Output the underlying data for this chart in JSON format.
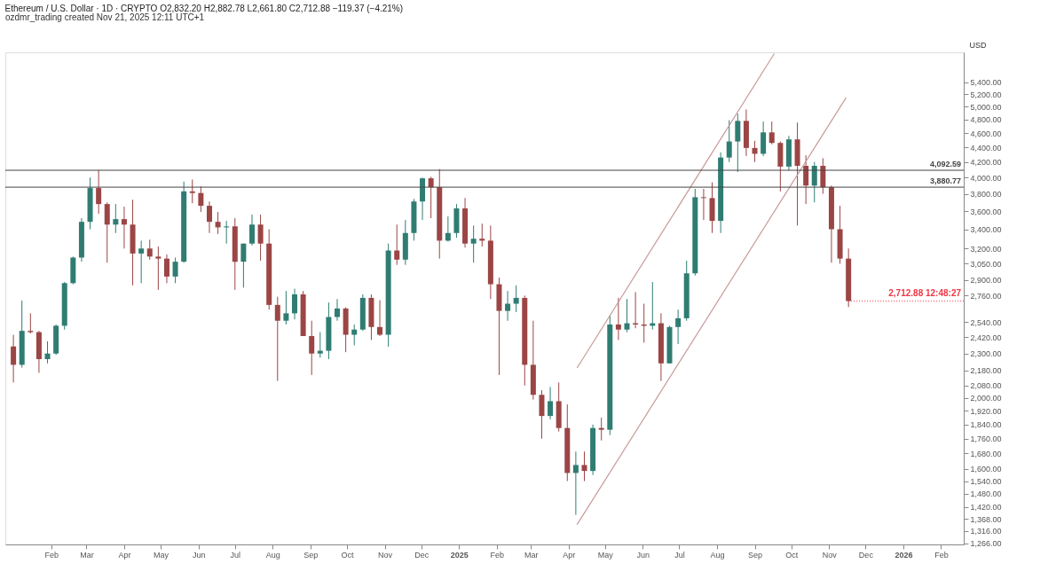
{
  "chart_data": {
    "type": "candlestick",
    "title": "Ethereum / U.S. Dollar · 1D · CRYPTO  O2,832.20  H2,882.78  L2,661.80  C2,712.88  −119.37 (−4.21%)",
    "annotations": [
      "ozdmr_trading created Nov 21, 2025 12:11 UTC+1",
      {
        "text": "2,712.88 12:48:27",
        "x": "2025-11-17",
        "y": 2712.88
      }
    ],
    "ylabel": "USD",
    "log": "y",
    "grid": false,
    "xlim": [
      "2023-12-29",
      "2026-02-16"
    ],
    "ylim": [
      1262,
      5930
    ],
    "xticks": [
      {
        "value": "2024-02-01",
        "label": "Feb"
      },
      {
        "value": "2024-03-01",
        "label": "Mar"
      },
      {
        "value": "2024-04-01",
        "label": "Apr"
      },
      {
        "value": "2024-05-01",
        "label": "May"
      },
      {
        "value": "2024-06-01",
        "label": "Jun"
      },
      {
        "value": "2024-07-01",
        "label": "Jul"
      },
      {
        "value": "2024-08-01",
        "label": "Aug"
      },
      {
        "value": "2024-09-01",
        "label": "Sep"
      },
      {
        "value": "2024-10-01",
        "label": "Oct"
      },
      {
        "value": "2024-11-01",
        "label": "Nov"
      },
      {
        "value": "2024-12-01",
        "label": "Dec"
      },
      {
        "value": "2025-01-01",
        "label": "2025"
      },
      {
        "value": "2025-02-01",
        "label": "Feb"
      },
      {
        "value": "2025-03-01",
        "label": "Mar"
      },
      {
        "value": "2025-04-01",
        "label": "Apr"
      },
      {
        "value": "2025-05-01",
        "label": "May"
      },
      {
        "value": "2025-06-01",
        "label": "Jun"
      },
      {
        "value": "2025-07-01",
        "label": "Jul"
      },
      {
        "value": "2025-08-01",
        "label": "Aug"
      },
      {
        "value": "2025-09-01",
        "label": "Sep"
      },
      {
        "value": "2025-10-01",
        "label": "Oct"
      },
      {
        "value": "2025-11-01",
        "label": "Nov"
      },
      {
        "value": "2025-12-01",
        "label": "Dec"
      },
      {
        "value": "2026-01-01",
        "label": "2026"
      },
      {
        "value": "2026-02-01",
        "label": "Feb"
      }
    ],
    "yticks": [
      {
        "value": 1266,
        "label": "1,266.00"
      },
      {
        "value": 1316,
        "label": "1,316.00"
      },
      {
        "value": 1368,
        "label": "1,368.00"
      },
      {
        "value": 1420,
        "label": "1,420.00"
      },
      {
        "value": 1480,
        "label": "1,480.00"
      },
      {
        "value": 1540,
        "label": "1,540.00"
      },
      {
        "value": 1600,
        "label": "1,600.00"
      },
      {
        "value": 1680,
        "label": "1,680.00"
      },
      {
        "value": 1760,
        "label": "1,760.00"
      },
      {
        "value": 1840,
        "label": "1,840.00"
      },
      {
        "value": 1920,
        "label": "1,920.00"
      },
      {
        "value": 2000,
        "label": "2,000.00"
      },
      {
        "value": 2080,
        "label": "2,080.00"
      },
      {
        "value": 2180,
        "label": "2,180.00"
      },
      {
        "value": 2300,
        "label": "2,300.00"
      },
      {
        "value": 2420,
        "label": "2,420.00"
      },
      {
        "value": 2540,
        "label": "2,540.00"
      },
      {
        "value": 2760,
        "label": "2,760.00"
      },
      {
        "value": 2900,
        "label": "2,900.00"
      },
      {
        "value": 3050,
        "label": "3,050.00"
      },
      {
        "value": 3200,
        "label": "3,200.00"
      },
      {
        "value": 3400,
        "label": "3,400.00"
      },
      {
        "value": 3600,
        "label": "3,600.00"
      },
      {
        "value": 3800,
        "label": "3,800.00"
      },
      {
        "value": 4000,
        "label": "4,000.00"
      },
      {
        "value": 4200,
        "label": "4,200.00"
      },
      {
        "value": 4400,
        "label": "4,400.00"
      },
      {
        "value": 4600,
        "label": "4,600.00"
      },
      {
        "value": 4800,
        "label": "4,800.00"
      },
      {
        "value": 5000,
        "label": "5,000.00"
      },
      {
        "value": 5200,
        "label": "5,200.00"
      },
      {
        "value": 5400,
        "label": "5,400.00"
      }
    ],
    "ref_lines": [
      {
        "axis": "y",
        "value": 4092.59,
        "label": "4,092.59",
        "color": "#444444"
      },
      {
        "axis": "y",
        "value": 3880.77,
        "label": "3,880.77",
        "color": "#444444"
      }
    ],
    "series": [
      {
        "x": [
          "2024-01-01",
          "2024-01-08",
          "2024-01-15",
          "2024-01-22",
          "2024-01-29",
          "2024-02-05",
          "2024-02-12",
          "2024-02-19",
          "2024-02-26",
          "2024-03-04",
          "2024-03-11",
          "2024-03-18",
          "2024-03-25",
          "2024-04-01",
          "2024-04-08",
          "2024-04-15",
          "2024-04-22",
          "2024-04-29",
          "2024-05-06",
          "2024-05-13",
          "2024-05-20",
          "2024-05-27",
          "2024-06-03",
          "2024-06-10",
          "2024-06-17",
          "2024-06-24",
          "2024-07-01",
          "2024-07-08",
          "2024-07-15",
          "2024-07-22",
          "2024-07-29",
          "2024-08-05",
          "2024-08-12",
          "2024-08-19",
          "2024-08-26",
          "2024-09-02",
          "2024-09-09",
          "2024-09-16",
          "2024-09-23",
          "2024-09-30",
          "2024-10-07",
          "2024-10-14",
          "2024-10-21",
          "2024-10-28",
          "2024-11-04",
          "2024-11-11",
          "2024-11-18",
          "2024-11-25",
          "2024-12-02",
          "2024-12-09",
          "2024-12-16",
          "2024-12-23",
          "2024-12-30",
          "2025-01-06",
          "2025-01-13",
          "2025-01-20",
          "2025-01-27",
          "2025-02-03",
          "2025-02-10",
          "2025-02-17",
          "2025-02-24",
          "2025-03-03",
          "2025-03-10",
          "2025-03-17",
          "2025-03-24",
          "2025-03-31",
          "2025-04-07",
          "2025-04-14",
          "2025-04-21",
          "2025-04-28",
          "2025-05-05",
          "2025-05-12",
          "2025-05-19",
          "2025-05-26",
          "2025-06-02",
          "2025-06-09",
          "2025-06-16",
          "2025-06-23",
          "2025-06-30",
          "2025-07-07",
          "2025-07-14",
          "2025-07-21",
          "2025-07-28",
          "2025-08-04",
          "2025-08-11",
          "2025-08-18",
          "2025-08-25",
          "2025-09-01",
          "2025-09-08",
          "2025-09-15",
          "2025-09-22",
          "2025-09-29",
          "2025-10-06",
          "2025-10-13",
          "2025-10-20",
          "2025-10-27",
          "2025-11-03",
          "2025-11-10",
          "2025-11-17"
        ],
        "ohlc": [
          [
            2352,
            2440,
            2100,
            2220
          ],
          [
            2220,
            2717,
            2200,
            2470
          ],
          [
            2470,
            2610,
            2450,
            2460
          ],
          [
            2460,
            2470,
            2165,
            2260
          ],
          [
            2260,
            2390,
            2230,
            2300
          ],
          [
            2300,
            2520,
            2290,
            2510
          ],
          [
            2510,
            2880,
            2480,
            2870
          ],
          [
            2870,
            3120,
            2860,
            3110
          ],
          [
            3110,
            3520,
            3070,
            3480
          ],
          [
            3480,
            4000,
            3400,
            3870
          ],
          [
            3870,
            4092,
            3570,
            3680
          ],
          [
            3680,
            3700,
            3060,
            3450
          ],
          [
            3450,
            3680,
            3360,
            3510
          ],
          [
            3510,
            3650,
            3200,
            3450
          ],
          [
            3450,
            3730,
            2850,
            3150
          ],
          [
            3150,
            3280,
            2870,
            3200
          ],
          [
            3200,
            3290,
            3090,
            3120
          ],
          [
            3120,
            3220,
            2810,
            3100
          ],
          [
            3100,
            3140,
            2870,
            2930
          ],
          [
            2930,
            3110,
            2870,
            3070
          ],
          [
            3070,
            3950,
            3060,
            3830
          ],
          [
            3830,
            3975,
            3690,
            3810
          ],
          [
            3810,
            3890,
            3590,
            3660
          ],
          [
            3660,
            3710,
            3360,
            3480
          ],
          [
            3480,
            3590,
            3350,
            3420
          ],
          [
            3420,
            3490,
            3250,
            3430
          ],
          [
            3430,
            3520,
            2810,
            3070
          ],
          [
            3070,
            3250,
            2830,
            3250
          ],
          [
            3250,
            3560,
            3230,
            3450
          ],
          [
            3450,
            3560,
            3080,
            3250
          ],
          [
            3250,
            3400,
            2640,
            2680
          ],
          [
            2680,
            2750,
            2110,
            2550
          ],
          [
            2550,
            2800,
            2520,
            2610
          ],
          [
            2610,
            2820,
            2560,
            2770
          ],
          [
            2770,
            2800,
            2430,
            2430
          ],
          [
            2430,
            2550,
            2150,
            2300
          ],
          [
            2300,
            2460,
            2270,
            2320
          ],
          [
            2320,
            2700,
            2260,
            2580
          ],
          [
            2580,
            2730,
            2550,
            2650
          ],
          [
            2650,
            2660,
            2310,
            2440
          ],
          [
            2440,
            2520,
            2360,
            2480
          ],
          [
            2480,
            2770,
            2470,
            2740
          ],
          [
            2740,
            2770,
            2400,
            2500
          ],
          [
            2500,
            2720,
            2430,
            2440
          ],
          [
            2440,
            3250,
            2350,
            3180
          ],
          [
            3180,
            3450,
            3040,
            3090
          ],
          [
            3090,
            3500,
            3040,
            3360
          ],
          [
            3360,
            3740,
            3280,
            3710
          ],
          [
            3710,
            4000,
            3500,
            3990
          ],
          [
            3990,
            4010,
            3520,
            3880
          ],
          [
            3880,
            4108,
            3100,
            3280
          ],
          [
            3280,
            3540,
            3270,
            3360
          ],
          [
            3360,
            3680,
            3310,
            3630
          ],
          [
            3630,
            3750,
            3210,
            3250
          ],
          [
            3250,
            3440,
            3060,
            3300
          ],
          [
            3300,
            3460,
            3220,
            3280
          ],
          [
            3280,
            3440,
            2730,
            2860
          ],
          [
            2860,
            2920,
            2150,
            2630
          ],
          [
            2630,
            2800,
            2550,
            2690
          ],
          [
            2690,
            2850,
            2620,
            2740
          ],
          [
            2740,
            2760,
            2080,
            2220
          ],
          [
            2220,
            2550,
            1990,
            2020
          ],
          [
            2020,
            2050,
            1760,
            1890
          ],
          [
            1890,
            2070,
            1870,
            1980
          ],
          [
            1980,
            2100,
            1800,
            1820
          ],
          [
            1820,
            1960,
            1540,
            1580
          ],
          [
            1580,
            1690,
            1385,
            1620
          ],
          [
            1620,
            1690,
            1540,
            1590
          ],
          [
            1590,
            1840,
            1570,
            1820
          ],
          [
            1820,
            1880,
            1750,
            1810
          ],
          [
            1810,
            2590,
            1780,
            2520
          ],
          [
            2520,
            2740,
            2400,
            2480
          ],
          [
            2480,
            2730,
            2460,
            2530
          ],
          [
            2530,
            2790,
            2490,
            2520
          ],
          [
            2520,
            2690,
            2380,
            2510
          ],
          [
            2510,
            2880,
            2480,
            2530
          ],
          [
            2530,
            2610,
            2110,
            2230
          ],
          [
            2230,
            2510,
            2230,
            2500
          ],
          [
            2500,
            2640,
            2370,
            2570
          ],
          [
            2570,
            3080,
            2550,
            2960
          ],
          [
            2960,
            3860,
            2940,
            3760
          ],
          [
            3760,
            3860,
            3500,
            3750
          ],
          [
            3750,
            3940,
            3360,
            3490
          ],
          [
            3490,
            4330,
            3360,
            4260
          ],
          [
            4260,
            4790,
            4200,
            4480
          ],
          [
            4480,
            4890,
            4070,
            4780
          ],
          [
            4780,
            4955,
            4280,
            4390
          ],
          [
            4390,
            4490,
            4200,
            4310
          ],
          [
            4310,
            4770,
            4280,
            4610
          ],
          [
            4610,
            4770,
            4440,
            4460
          ],
          [
            4460,
            4480,
            3830,
            4140
          ],
          [
            4140,
            4560,
            4090,
            4510
          ],
          [
            4510,
            4755,
            3440,
            4150
          ],
          [
            4150,
            4290,
            3680,
            3900
          ],
          [
            3900,
            4200,
            3700,
            4150
          ],
          [
            4150,
            4250,
            3800,
            3880
          ],
          [
            3880,
            3900,
            3060,
            3400
          ],
          [
            3400,
            3660,
            3050,
            3100
          ],
          [
            3100,
            3200,
            2661.8,
            2712.88
          ]
        ],
        "colors": [
          "#9b4545",
          "#2f7d72",
          "#9b4545",
          "#9b4545",
          "#2f7d72",
          "#2f7d72",
          "#2f7d72",
          "#2f7d72",
          "#2f7d72",
          "#2f7d72",
          "#9b4545",
          "#9b4545",
          "#2f7d72",
          "#9b4545",
          "#9b4545",
          "#2f7d72",
          "#9b4545",
          "#9b4545",
          "#9b4545",
          "#2f7d72",
          "#2f7d72",
          "#9b4545",
          "#9b4545",
          "#9b4545",
          "#9b4545",
          "#2f7d72",
          "#9b4545",
          "#2f7d72",
          "#2f7d72",
          "#9b4545",
          "#9b4545",
          "#9b4545",
          "#2f7d72",
          "#2f7d72",
          "#9b4545",
          "#9b4545",
          "#2f7d72",
          "#2f7d72",
          "#2f7d72",
          "#9b4545",
          "#2f7d72",
          "#2f7d72",
          "#9b4545",
          "#9b4545",
          "#2f7d72",
          "#9b4545",
          "#2f7d72",
          "#2f7d72",
          "#2f7d72",
          "#9b4545",
          "#9b4545",
          "#2f7d72",
          "#2f7d72",
          "#9b4545",
          "#2f7d72",
          "#9b4545",
          "#9b4545",
          "#9b4545",
          "#2f7d72",
          "#2f7d72",
          "#9b4545",
          "#9b4545",
          "#9b4545",
          "#2f7d72",
          "#9b4545",
          "#9b4545",
          "#2f7d72",
          "#9b4545",
          "#2f7d72",
          "#9b4545",
          "#2f7d72",
          "#9b4545",
          "#2f7d72",
          "#9b4545",
          "#9b4545",
          "#2f7d72",
          "#9b4545",
          "#2f7d72",
          "#2f7d72",
          "#2f7d72",
          "#2f7d72",
          "#9b4545",
          "#9b4545",
          "#2f7d72",
          "#2f7d72",
          "#2f7d72",
          "#9b4545",
          "#9b4545",
          "#2f7d72",
          "#9b4545",
          "#9b4545",
          "#2f7d72",
          "#9b4545",
          "#9b4545",
          "#2f7d72",
          "#9b4545",
          "#9b4545",
          "#9b4545",
          "#9b4545"
        ]
      },
      {
        "type": "line",
        "x": [
          "2025-04-08",
          "2025-09-17"
        ],
        "values": [
          2198,
          5905
        ],
        "color": "#c79a9a"
      },
      {
        "type": "line",
        "x": [
          "2025-04-08",
          "2025-11-15"
        ],
        "values": [
          1343,
          5143
        ],
        "color": "#c79a9a"
      }
    ]
  }
}
